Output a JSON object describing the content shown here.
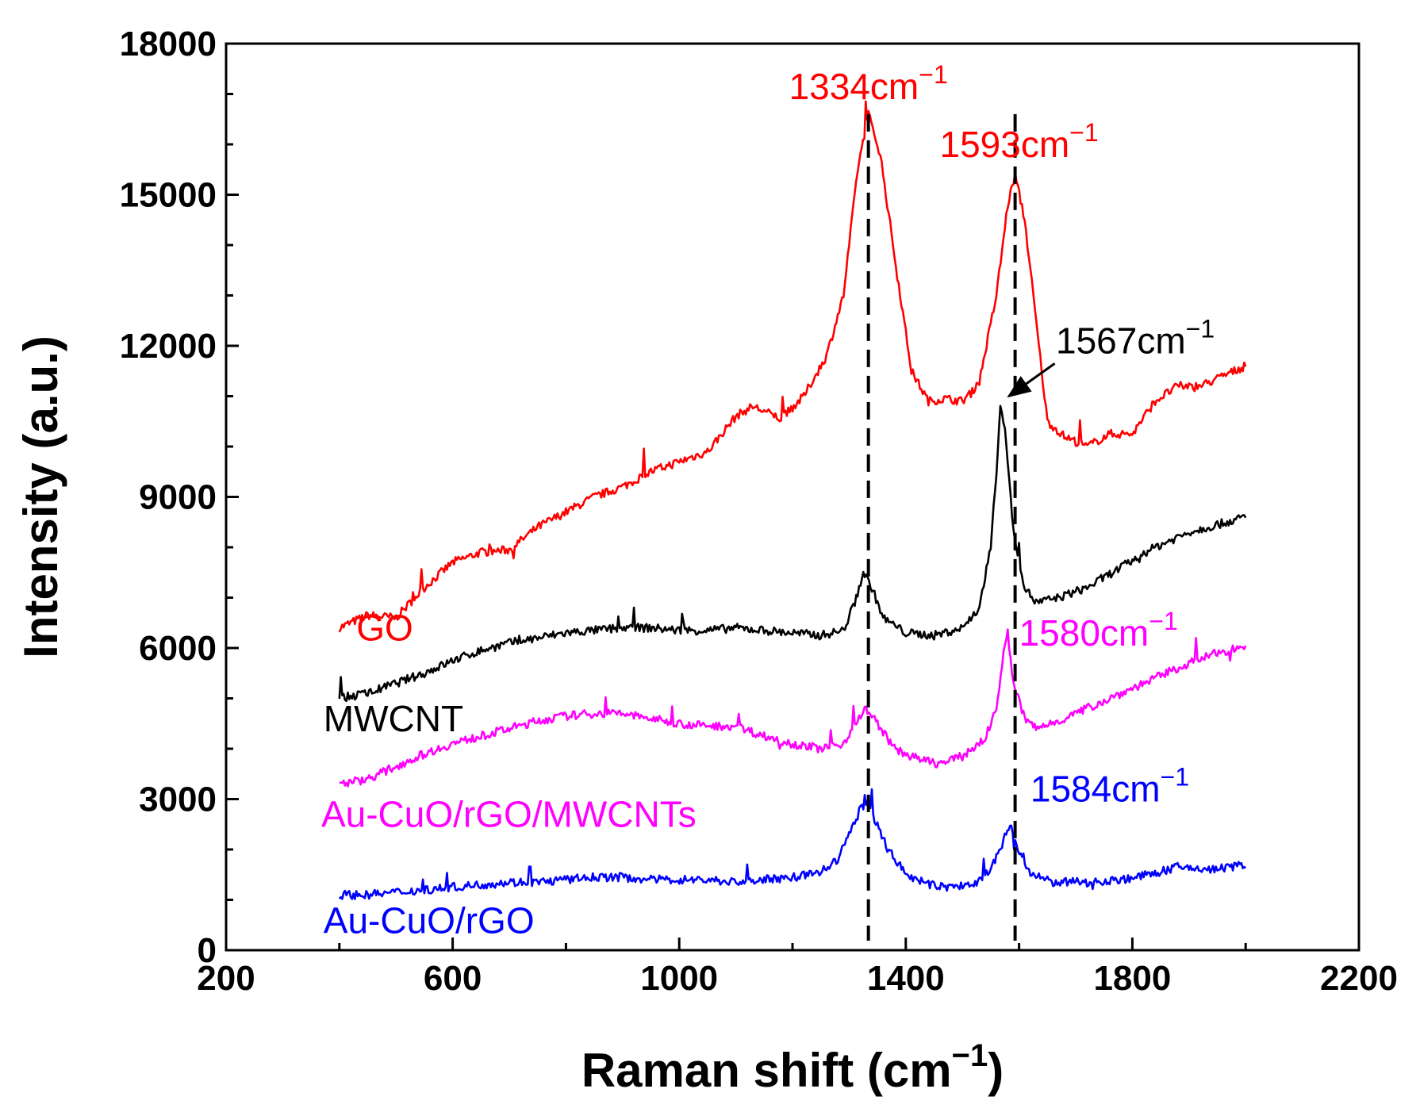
{
  "chart_data": {
    "type": "line",
    "xlabel": "Raman shift (cm",
    "xlabel_exp": "−1",
    "xlabel_close": ")",
    "ylabel": "Intensity (a.u.)",
    "xlim": [
      200,
      2200
    ],
    "ylim": [
      0,
      18000
    ],
    "x_ticks": [
      200,
      600,
      1000,
      1400,
      1800,
      2200
    ],
    "y_ticks": [
      0,
      3000,
      6000,
      9000,
      12000,
      15000,
      18000
    ],
    "x_tick_labels": [
      "200",
      "600",
      "1000",
      "1400",
      "1800",
      "2200"
    ],
    "y_tick_labels": [
      "0",
      "3000",
      "6000",
      "9000",
      "12000",
      "15000",
      "18000"
    ],
    "grid": false,
    "dashed_lines_x": [
      1334,
      1593
    ],
    "series": [
      {
        "name": "GO",
        "label": "GO",
        "color": "#ff0000",
        "label_at": [
          430,
          6150
        ],
        "points": [
          [
            400,
            6400
          ],
          [
            450,
            6650
          ],
          [
            500,
            6600
          ],
          [
            550,
            7200
          ],
          [
            600,
            7700
          ],
          [
            650,
            7900
          ],
          [
            700,
            7950
          ],
          [
            750,
            8400
          ],
          [
            800,
            8700
          ],
          [
            850,
            9000
          ],
          [
            900,
            9200
          ],
          [
            950,
            9500
          ],
          [
            1000,
            9700
          ],
          [
            1050,
            9900
          ],
          [
            1100,
            10600
          ],
          [
            1130,
            10800
          ],
          [
            1180,
            10550
          ],
          [
            1220,
            11000
          ],
          [
            1260,
            11800
          ],
          [
            1290,
            13000
          ],
          [
            1315,
            15500
          ],
          [
            1334,
            16600
          ],
          [
            1355,
            15800
          ],
          [
            1380,
            13800
          ],
          [
            1410,
            11500
          ],
          [
            1440,
            10900
          ],
          [
            1470,
            10950
          ],
          [
            1500,
            10900
          ],
          [
            1530,
            11300
          ],
          [
            1560,
            13000
          ],
          [
            1580,
            14800
          ],
          [
            1593,
            15400
          ],
          [
            1610,
            14500
          ],
          [
            1630,
            12500
          ],
          [
            1650,
            10500
          ],
          [
            1680,
            10200
          ],
          [
            1720,
            10000
          ],
          [
            1760,
            10250
          ],
          [
            1800,
            10250
          ],
          [
            1840,
            10900
          ],
          [
            1880,
            11200
          ],
          [
            1920,
            11200
          ],
          [
            1960,
            11400
          ],
          [
            2000,
            11600
          ]
        ]
      },
      {
        "name": "MWCNT",
        "label": "MWCNT",
        "color": "#000000",
        "label_at": [
          372,
          4350
        ],
        "points": [
          [
            400,
            5000
          ],
          [
            450,
            5100
          ],
          [
            500,
            5300
          ],
          [
            550,
            5500
          ],
          [
            600,
            5750
          ],
          [
            650,
            5950
          ],
          [
            700,
            6100
          ],
          [
            750,
            6200
          ],
          [
            800,
            6300
          ],
          [
            850,
            6350
          ],
          [
            900,
            6400
          ],
          [
            950,
            6400
          ],
          [
            1000,
            6350
          ],
          [
            1050,
            6350
          ],
          [
            1100,
            6400
          ],
          [
            1150,
            6350
          ],
          [
            1200,
            6300
          ],
          [
            1250,
            6250
          ],
          [
            1290,
            6350
          ],
          [
            1310,
            6900
          ],
          [
            1325,
            7500
          ],
          [
            1340,
            7200
          ],
          [
            1360,
            6600
          ],
          [
            1400,
            6300
          ],
          [
            1450,
            6250
          ],
          [
            1500,
            6400
          ],
          [
            1530,
            6800
          ],
          [
            1550,
            8000
          ],
          [
            1560,
            9500
          ],
          [
            1567,
            10800
          ],
          [
            1575,
            10400
          ],
          [
            1590,
            8300
          ],
          [
            1610,
            7200
          ],
          [
            1630,
            6900
          ],
          [
            1670,
            7000
          ],
          [
            1720,
            7200
          ],
          [
            1780,
            7600
          ],
          [
            1840,
            8000
          ],
          [
            1900,
            8300
          ],
          [
            1950,
            8450
          ],
          [
            2000,
            8600
          ]
        ]
      },
      {
        "name": "Au-CuO/rGO/MWCNTs",
        "label": "Au-CuO/rGO/MWCNTs",
        "color": "#ff00ff",
        "label_at": [
          368,
          2450
        ],
        "points": [
          [
            400,
            3300
          ],
          [
            450,
            3400
          ],
          [
            500,
            3650
          ],
          [
            550,
            3900
          ],
          [
            600,
            4100
          ],
          [
            650,
            4250
          ],
          [
            700,
            4400
          ],
          [
            750,
            4550
          ],
          [
            800,
            4650
          ],
          [
            850,
            4700
          ],
          [
            900,
            4700
          ],
          [
            950,
            4600
          ],
          [
            1000,
            4500
          ],
          [
            1050,
            4450
          ],
          [
            1100,
            4450
          ],
          [
            1150,
            4250
          ],
          [
            1200,
            4100
          ],
          [
            1250,
            4000
          ],
          [
            1290,
            4100
          ],
          [
            1310,
            4500
          ],
          [
            1330,
            4800
          ],
          [
            1350,
            4500
          ],
          [
            1380,
            4000
          ],
          [
            1420,
            3800
          ],
          [
            1460,
            3700
          ],
          [
            1500,
            3850
          ],
          [
            1540,
            4200
          ],
          [
            1560,
            4800
          ],
          [
            1570,
            5700
          ],
          [
            1580,
            6300
          ],
          [
            1590,
            5300
          ],
          [
            1610,
            4600
          ],
          [
            1630,
            4400
          ],
          [
            1680,
            4600
          ],
          [
            1730,
            4850
          ],
          [
            1780,
            5100
          ],
          [
            1840,
            5400
          ],
          [
            1900,
            5700
          ],
          [
            1950,
            5900
          ],
          [
            2000,
            6050
          ]
        ]
      },
      {
        "name": "Au-CuO/rGO",
        "label": "Au-CuO/rGO",
        "color": "#0000ff",
        "label_at": [
          372,
          340
        ],
        "points": [
          [
            400,
            1100
          ],
          [
            450,
            1100
          ],
          [
            500,
            1150
          ],
          [
            550,
            1200
          ],
          [
            600,
            1250
          ],
          [
            650,
            1300
          ],
          [
            700,
            1350
          ],
          [
            750,
            1350
          ],
          [
            800,
            1400
          ],
          [
            850,
            1450
          ],
          [
            900,
            1450
          ],
          [
            950,
            1400
          ],
          [
            1000,
            1400
          ],
          [
            1050,
            1400
          ],
          [
            1100,
            1350
          ],
          [
            1150,
            1400
          ],
          [
            1200,
            1450
          ],
          [
            1250,
            1550
          ],
          [
            1280,
            1800
          ],
          [
            1300,
            2300
          ],
          [
            1320,
            2800
          ],
          [
            1330,
            2950
          ],
          [
            1345,
            2600
          ],
          [
            1370,
            2000
          ],
          [
            1400,
            1500
          ],
          [
            1440,
            1300
          ],
          [
            1480,
            1250
          ],
          [
            1520,
            1300
          ],
          [
            1550,
            1600
          ],
          [
            1570,
            2100
          ],
          [
            1584,
            2500
          ],
          [
            1598,
            2000
          ],
          [
            1620,
            1500
          ],
          [
            1660,
            1350
          ],
          [
            1720,
            1350
          ],
          [
            1780,
            1400
          ],
          [
            1830,
            1500
          ],
          [
            1880,
            1650
          ],
          [
            1940,
            1600
          ],
          [
            2000,
            1700
          ]
        ]
      }
    ],
    "annotations": [
      {
        "text": "1334cm",
        "exp": "−1",
        "color": "#ff0000",
        "at": [
          1334,
          16900
        ],
        "anchor": "middle"
      },
      {
        "text": "1593cm",
        "exp": "−1",
        "color": "#ff0000",
        "at": [
          1600,
          15750
        ],
        "anchor": "middle"
      },
      {
        "text": "1567cm",
        "exp": "−1",
        "color": "#000000",
        "at": [
          1665,
          11850
        ],
        "anchor": "start",
        "arrow_from": [
          1663,
          11650
        ],
        "arrow_to": [
          1582,
          11000
        ]
      },
      {
        "text": "1580cm",
        "exp": "−1",
        "color": "#ff00ff",
        "at": [
          1600,
          6050
        ],
        "anchor": "start"
      },
      {
        "text": "1584cm",
        "exp": "−1",
        "color": "#0000ff",
        "at": [
          1620,
          2950
        ],
        "anchor": "start"
      }
    ]
  }
}
